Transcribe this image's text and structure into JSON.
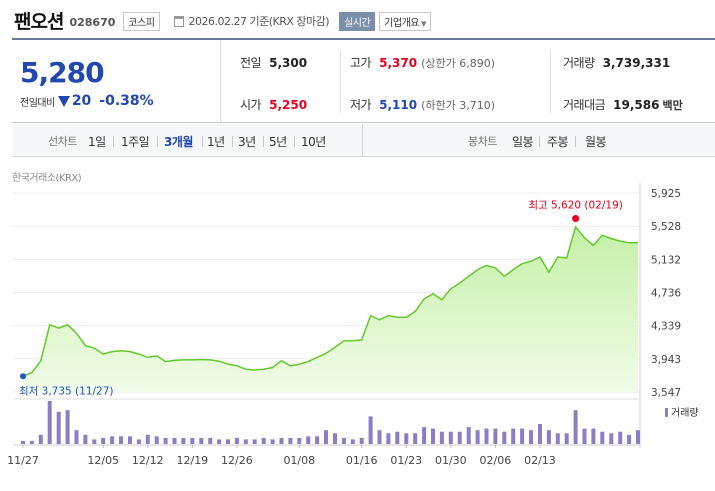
{
  "header": {
    "stock_name": "팬오션",
    "stock_code": "028670",
    "market": "코스피",
    "date_text": "2026.02.27  기준(KRX 장마감)",
    "realtime_label": "실시간",
    "company_info_label": "기업개요"
  },
  "quote": {
    "current_price": "5,280",
    "change_label": "전일대비",
    "change_value": "20",
    "change_rate": "-0.38%",
    "direction": "down",
    "prev_close_label": "전일",
    "prev_close": "5,300",
    "high_label": "고가",
    "high": "5,370",
    "upper_limit": "(상한가 6,890)",
    "volume_label": "거래량",
    "volume": "3,739,331",
    "open_label": "시가",
    "open": "5,250",
    "low_label": "저가",
    "low": "5,110",
    "lower_limit": "(하한가 3,710)",
    "trade_value_label": "거래대금",
    "trade_value": "19,586",
    "trade_value_unit": "백만"
  },
  "period_bar": {
    "line_label": "선차트",
    "line_periods": [
      "1일",
      "1주일",
      "3개월",
      "1년",
      "3년",
      "5년",
      "10년"
    ],
    "active_period": "3개월",
    "candle_label": "봉차트",
    "candle_periods": [
      "일봉",
      "주봉",
      "월봉"
    ]
  },
  "chart": {
    "exchange_label": "한국거래소(KRX)",
    "max_annotation": "최고 5,620 (02/19)",
    "min_annotation": "최저 3,735 (11/27)",
    "volume_legend": "거래량",
    "colors": {
      "line": "#63c92e",
      "fill_top": "#c4f0a6",
      "fill_bottom": "#f2fce9",
      "volume": "#8d7cc6",
      "max_dot": "#e8001c",
      "min_dot": "#2255c4"
    }
  },
  "chart_data": {
    "type": "area",
    "ylim": [
      3547,
      5925
    ],
    "yticks": [
      "5,925",
      "5,528",
      "5,132",
      "4,736",
      "4,339",
      "3,943",
      "3,547"
    ],
    "yticks_values": [
      5925,
      5528,
      5132,
      4736,
      4339,
      3943,
      3547
    ],
    "x_labels": [
      "11/27",
      "12/05",
      "12/12",
      "12/19",
      "12/26",
      "01/08",
      "01/16",
      "01/23",
      "01/30",
      "02/06",
      "02/13"
    ],
    "x_label_index": [
      0,
      9,
      14,
      19,
      24,
      31,
      38,
      43,
      48,
      53,
      58
    ],
    "prices": [
      3735,
      3780,
      3920,
      4350,
      4310,
      4350,
      4250,
      4100,
      4070,
      4000,
      4030,
      4040,
      4030,
      4000,
      3960,
      3980,
      3910,
      3925,
      3930,
      3930,
      3935,
      3930,
      3915,
      3880,
      3860,
      3820,
      3810,
      3820,
      3840,
      3920,
      3860,
      3880,
      3910,
      3960,
      4010,
      4080,
      4160,
      4160,
      4170,
      4460,
      4410,
      4460,
      4440,
      4440,
      4510,
      4660,
      4720,
      4650,
      4780,
      4850,
      4930,
      5010,
      5060,
      5030,
      4930,
      5010,
      5080,
      5110,
      5160,
      4980,
      5160,
      5150,
      5520,
      5390,
      5300,
      5420,
      5380,
      5350,
      5330,
      5330
    ],
    "volume_series_name": "거래량",
    "volumes": [
      2,
      2,
      6,
      28,
      21,
      22,
      9,
      6,
      3,
      4,
      5,
      5,
      5,
      3,
      6,
      5,
      4,
      4,
      4,
      4,
      4,
      4,
      3,
      3,
      4,
      3,
      3,
      4,
      3,
      4,
      4,
      4,
      5,
      5,
      9,
      7,
      4,
      3,
      4,
      18,
      9,
      7,
      8,
      7,
      7,
      11,
      10,
      8,
      8,
      8,
      11,
      9,
      10,
      10,
      8,
      10,
      10,
      9,
      13,
      9,
      7,
      7,
      22,
      10,
      10,
      8,
      7,
      8,
      6,
      9
    ],
    "max": {
      "value": 5620,
      "date": "02/19"
    },
    "min": {
      "value": 3735,
      "date": "11/27"
    }
  }
}
